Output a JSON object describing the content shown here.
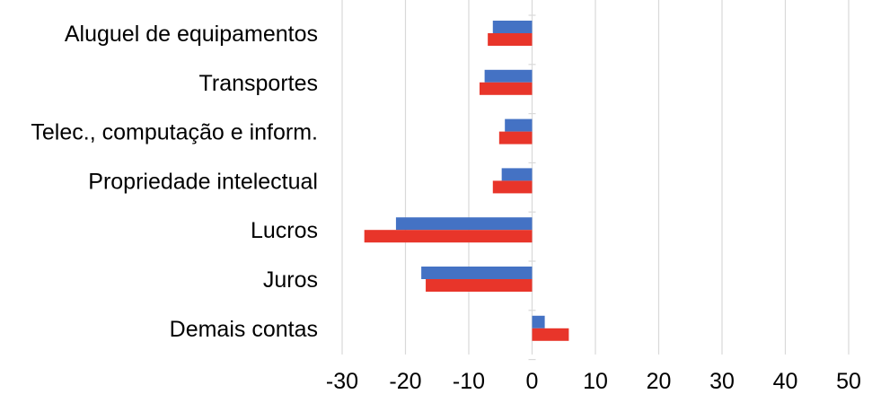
{
  "chart_data": {
    "type": "bar",
    "orientation": "horizontal",
    "categories": [
      "Aluguel de equipamentos",
      "Transportes",
      "Telec., computação e inform.",
      "Propriedade intelectual",
      "Lucros",
      "Juros",
      "Demais contas"
    ],
    "series": [
      {
        "color": "#4472C4",
        "values": [
          -6.2,
          -7.5,
          -4.3,
          -4.8,
          -21.5,
          -17.5,
          2.0
        ]
      },
      {
        "color": "#E8352A",
        "values": [
          -7.0,
          -8.3,
          -5.2,
          -6.2,
          -26.5,
          -16.8,
          5.8
        ]
      }
    ],
    "xlim": [
      -30,
      50
    ],
    "xticks": [
      "-30",
      "-20",
      "-10",
      "0",
      "10",
      "20",
      "30",
      "40",
      "50"
    ],
    "grid": "vertical",
    "legend": "none"
  }
}
